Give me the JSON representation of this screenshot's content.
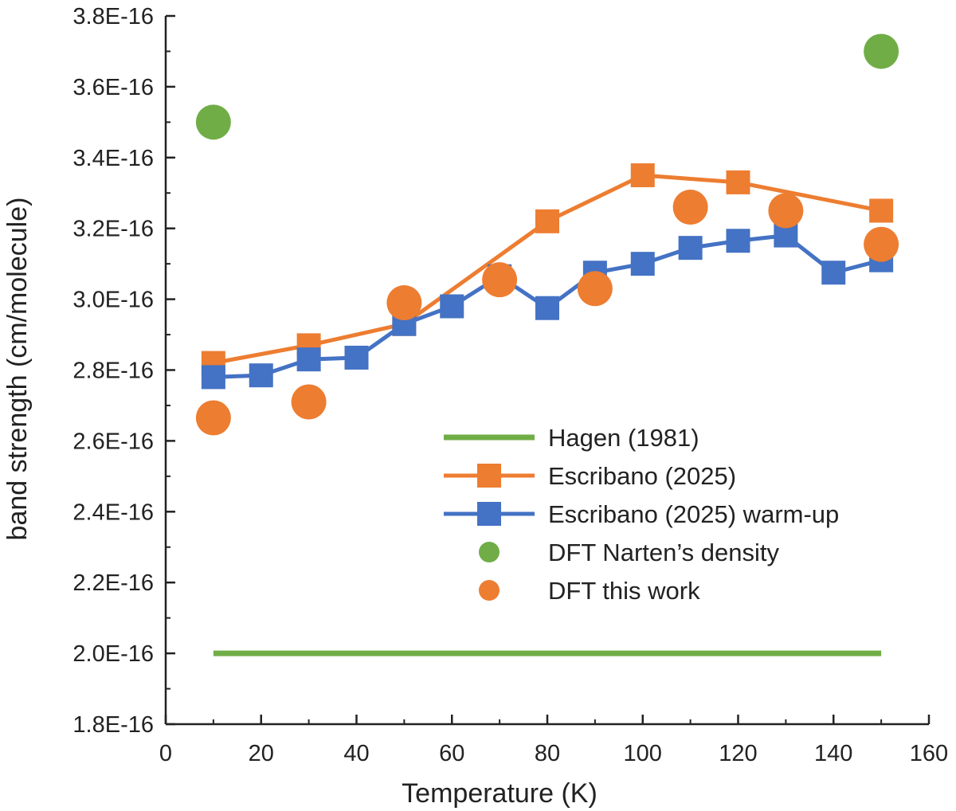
{
  "chart_data": {
    "type": "line+scatter",
    "title": "",
    "xlabel": "Temperature (K)",
    "ylabel": "band strength (cm/molecule)",
    "xlim": [
      0,
      160
    ],
    "ylim": [
      1.8e-16,
      3.8e-16
    ],
    "xticks": [
      0,
      20,
      40,
      60,
      80,
      100,
      120,
      140,
      160
    ],
    "xtick_labels": [
      "0",
      "20",
      "40",
      "60",
      "80",
      "100",
      "120",
      "140",
      "160"
    ],
    "yticks": [
      1.8e-16,
      2e-16,
      2.2e-16,
      2.4e-16,
      2.6e-16,
      2.8e-16,
      3e-16,
      3.2e-16,
      3.4e-16,
      3.6e-16,
      3.8e-16
    ],
    "ytick_labels": [
      "1.8E-16",
      "2.0E-16",
      "2.2E-16",
      "2.4E-16",
      "2.6E-16",
      "2.8E-16",
      "3.0E-16",
      "3.2E-16",
      "3.4E-16",
      "3.6E-16",
      "3.8E-16"
    ],
    "grid": false,
    "legend_position": "bottom-right",
    "series": [
      {
        "id": "hagen",
        "name": "Hagen (1981)",
        "style": "line",
        "color": "#70ad47",
        "x": [
          10,
          150
        ],
        "y": [
          2e-16,
          2e-16
        ]
      },
      {
        "id": "escribano",
        "name": "Escribano (2025)",
        "style": "line-square",
        "color": "#ed7d31",
        "x": [
          10,
          30,
          50,
          80,
          100,
          120,
          150
        ],
        "y": [
          2.82e-16,
          2.87e-16,
          2.93e-16,
          3.22e-16,
          3.35e-16,
          3.33e-16,
          3.25e-16
        ]
      },
      {
        "id": "escribano-warmup",
        "name": "Escribano (2025) warm-up",
        "style": "line-square",
        "color": "#4472c4",
        "x": [
          10,
          20,
          30,
          40,
          50,
          60,
          70,
          80,
          90,
          100,
          110,
          120,
          130,
          140,
          150
        ],
        "y": [
          2.78e-16,
          2.785e-16,
          2.83e-16,
          2.835e-16,
          2.93e-16,
          2.98e-16,
          3.065e-16,
          2.975e-16,
          3.075e-16,
          3.1e-16,
          3.145e-16,
          3.165e-16,
          3.18e-16,
          3.075e-16,
          3.11e-16
        ]
      },
      {
        "id": "dft-narten",
        "name": "DFT Narten’s density",
        "style": "circle",
        "color": "#70ad47",
        "x": [
          10,
          150
        ],
        "y": [
          3.5e-16,
          3.7e-16
        ]
      },
      {
        "id": "dft-this-work",
        "name": "DFT this work",
        "style": "circle",
        "color": "#ed7d31",
        "x": [
          10,
          30,
          50,
          70,
          90,
          110,
          130,
          150
        ],
        "y": [
          2.665e-16,
          2.71e-16,
          2.99e-16,
          3.055e-16,
          3.03e-16,
          3.26e-16,
          3.25e-16,
          3.155e-16
        ]
      }
    ]
  }
}
